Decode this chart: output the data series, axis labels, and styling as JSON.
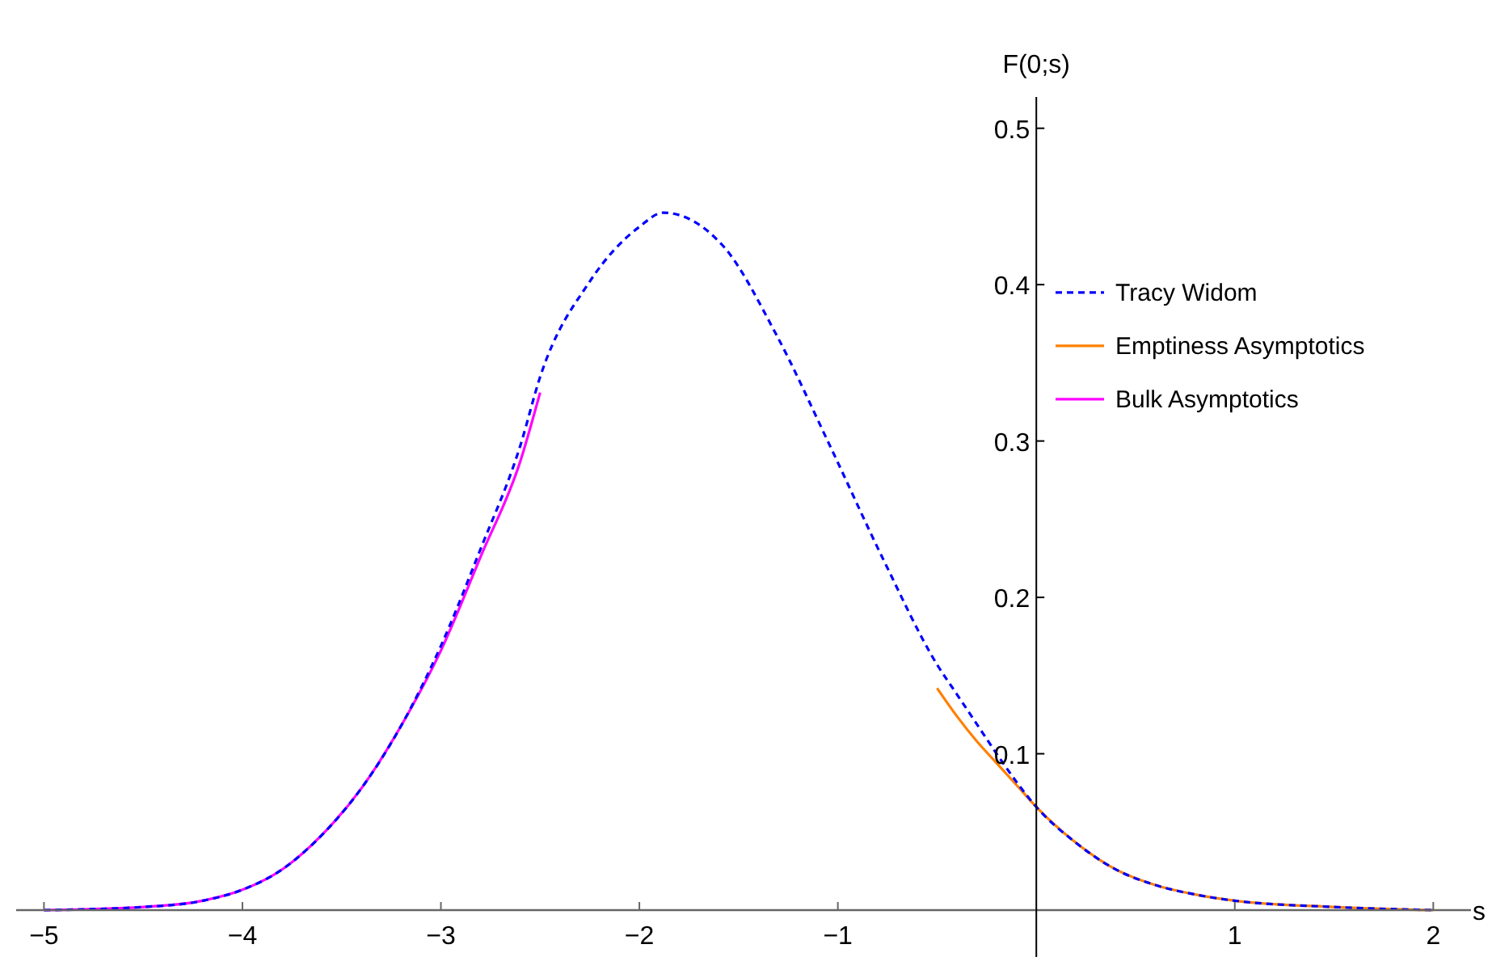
{
  "chart_data": {
    "type": "line",
    "xlabel": "s",
    "ylabel": "F(0;s)",
    "xlim": [
      -5.14,
      2.19
    ],
    "ylim": [
      0,
      0.52
    ],
    "xticks": [
      -5,
      -4,
      -3,
      -2,
      -1,
      1,
      2
    ],
    "yticks": [
      0.1,
      0.2,
      0.3,
      0.4,
      0.5
    ],
    "grid": false,
    "legend": "right",
    "marker": "none",
    "series": [
      {
        "name": "Tracy Widom",
        "color": "#0000ff",
        "line_style": "dashed",
        "x": [
          -5,
          -4.5,
          -4.2,
          -4,
          -3.8,
          -3.6,
          -3.4,
          -3.2,
          -3,
          -2.8,
          -2.6,
          -2.5,
          -2.25,
          -2,
          -1.88,
          -1.58,
          -1.31,
          -1.04,
          -0.77,
          -0.5,
          -0.4,
          -0.3,
          -0.2,
          -0.1,
          0,
          0.2,
          0.4,
          0.6,
          0.8,
          1,
          1.5,
          2
        ],
        "values": [
          0,
          0.002,
          0.006,
          0.013,
          0.026,
          0.048,
          0.078,
          0.118,
          0.169,
          0.231,
          0.297,
          0.341,
          0.402,
          0.437,
          0.446,
          0.425,
          0.368,
          0.297,
          0.224,
          0.157,
          0.138,
          0.119,
          0.1,
          0.082,
          0.066,
          0.043,
          0.026,
          0.016,
          0.01,
          0.006,
          0.002,
          0
        ]
      },
      {
        "name": "Emptiness Asymptotics",
        "color": "#ff8000",
        "line_style": "solid",
        "x": [
          -0.5,
          -0.4,
          -0.3,
          -0.2,
          -0.1,
          0,
          0.2,
          0.4,
          0.6,
          0.8,
          1,
          1.5,
          2
        ],
        "values": [
          0.142,
          0.124,
          0.108,
          0.094,
          0.08,
          0.066,
          0.043,
          0.026,
          0.016,
          0.01,
          0.006,
          0.002,
          0
        ]
      },
      {
        "name": "Bulk Asymptotics",
        "color": "#ff00ff",
        "line_style": "solid",
        "x": [
          -5,
          -4.5,
          -4.2,
          -4,
          -3.8,
          -3.6,
          -3.4,
          -3.2,
          -3,
          -2.8,
          -2.6,
          -2.5
        ],
        "values": [
          0,
          0.002,
          0.006,
          0.013,
          0.026,
          0.048,
          0.078,
          0.118,
          0.166,
          0.226,
          0.287,
          0.331
        ]
      }
    ]
  }
}
